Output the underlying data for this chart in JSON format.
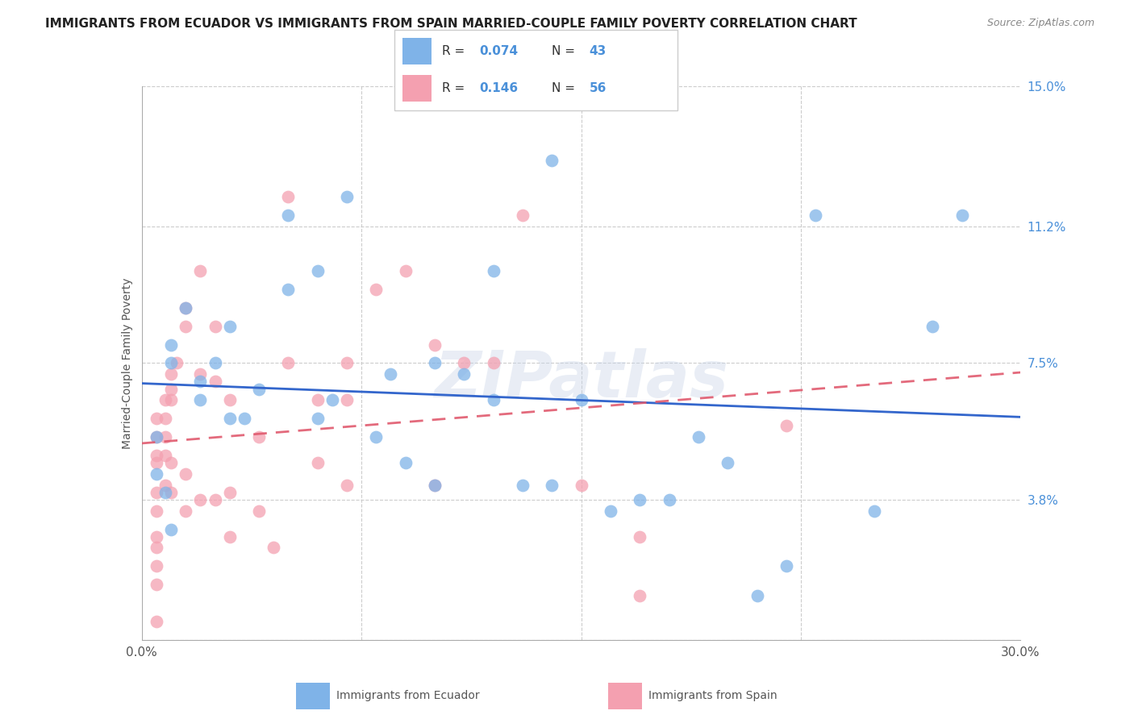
{
  "title": "IMMIGRANTS FROM ECUADOR VS IMMIGRANTS FROM SPAIN MARRIED-COUPLE FAMILY POVERTY CORRELATION CHART",
  "source": "Source: ZipAtlas.com",
  "ylabel": "Married-Couple Family Poverty",
  "x_min": 0.0,
  "x_max": 0.3,
  "y_min": 0.0,
  "y_max": 0.15,
  "x_ticks": [
    0.0,
    0.05,
    0.1,
    0.15,
    0.2,
    0.25,
    0.3
  ],
  "y_ticks_right": [
    0.0,
    0.038,
    0.075,
    0.112,
    0.15
  ],
  "y_tick_labels_right": [
    "",
    "3.8%",
    "7.5%",
    "11.2%",
    "15.0%"
  ],
  "ecuador_color": "#7fb3e8",
  "spain_color": "#f4a0b0",
  "ecuador_line_color": "#3366cc",
  "spain_line_color": "#e05a6e",
  "ecuador_R": 0.074,
  "ecuador_N": 43,
  "spain_R": 0.146,
  "spain_N": 56,
  "ecuador_points_x": [
    0.01,
    0.01,
    0.015,
    0.02,
    0.03,
    0.035,
    0.005,
    0.008,
    0.005,
    0.01,
    0.02,
    0.025,
    0.03,
    0.04,
    0.05,
    0.06,
    0.065,
    0.08,
    0.09,
    0.1,
    0.1,
    0.11,
    0.12,
    0.13,
    0.14,
    0.15,
    0.16,
    0.17,
    0.18,
    0.19,
    0.2,
    0.21,
    0.22,
    0.23,
    0.25,
    0.27,
    0.28,
    0.12,
    0.07,
    0.05,
    0.06,
    0.14,
    0.085
  ],
  "ecuador_points_y": [
    0.075,
    0.08,
    0.09,
    0.065,
    0.085,
    0.06,
    0.045,
    0.04,
    0.055,
    0.03,
    0.07,
    0.075,
    0.06,
    0.068,
    0.095,
    0.06,
    0.065,
    0.055,
    0.048,
    0.075,
    0.042,
    0.072,
    0.065,
    0.042,
    0.042,
    0.065,
    0.035,
    0.038,
    0.038,
    0.055,
    0.048,
    0.012,
    0.02,
    0.115,
    0.035,
    0.085,
    0.115,
    0.1,
    0.12,
    0.115,
    0.1,
    0.13,
    0.072
  ],
  "spain_points_x": [
    0.005,
    0.005,
    0.005,
    0.005,
    0.005,
    0.005,
    0.005,
    0.005,
    0.005,
    0.005,
    0.005,
    0.008,
    0.008,
    0.008,
    0.008,
    0.008,
    0.01,
    0.01,
    0.01,
    0.01,
    0.01,
    0.012,
    0.015,
    0.015,
    0.015,
    0.015,
    0.02,
    0.02,
    0.02,
    0.025,
    0.025,
    0.025,
    0.03,
    0.03,
    0.03,
    0.04,
    0.04,
    0.045,
    0.05,
    0.05,
    0.06,
    0.06,
    0.07,
    0.07,
    0.07,
    0.08,
    0.09,
    0.1,
    0.1,
    0.11,
    0.12,
    0.13,
    0.15,
    0.17,
    0.17,
    0.22
  ],
  "spain_points_y": [
    0.06,
    0.055,
    0.05,
    0.048,
    0.04,
    0.035,
    0.028,
    0.025,
    0.02,
    0.015,
    0.005,
    0.065,
    0.06,
    0.055,
    0.05,
    0.042,
    0.072,
    0.068,
    0.065,
    0.048,
    0.04,
    0.075,
    0.09,
    0.085,
    0.045,
    0.035,
    0.1,
    0.072,
    0.038,
    0.085,
    0.07,
    0.038,
    0.065,
    0.04,
    0.028,
    0.055,
    0.035,
    0.025,
    0.12,
    0.075,
    0.065,
    0.048,
    0.075,
    0.065,
    0.042,
    0.095,
    0.1,
    0.08,
    0.042,
    0.075,
    0.075,
    0.115,
    0.042,
    0.028,
    0.012,
    0.058
  ],
  "watermark": "ZIPatlas",
  "background_color": "#ffffff",
  "grid_color": "#cccccc",
  "legend_ecuador_label": "Immigrants from Ecuador",
  "legend_spain_label": "Immigrants from Spain"
}
